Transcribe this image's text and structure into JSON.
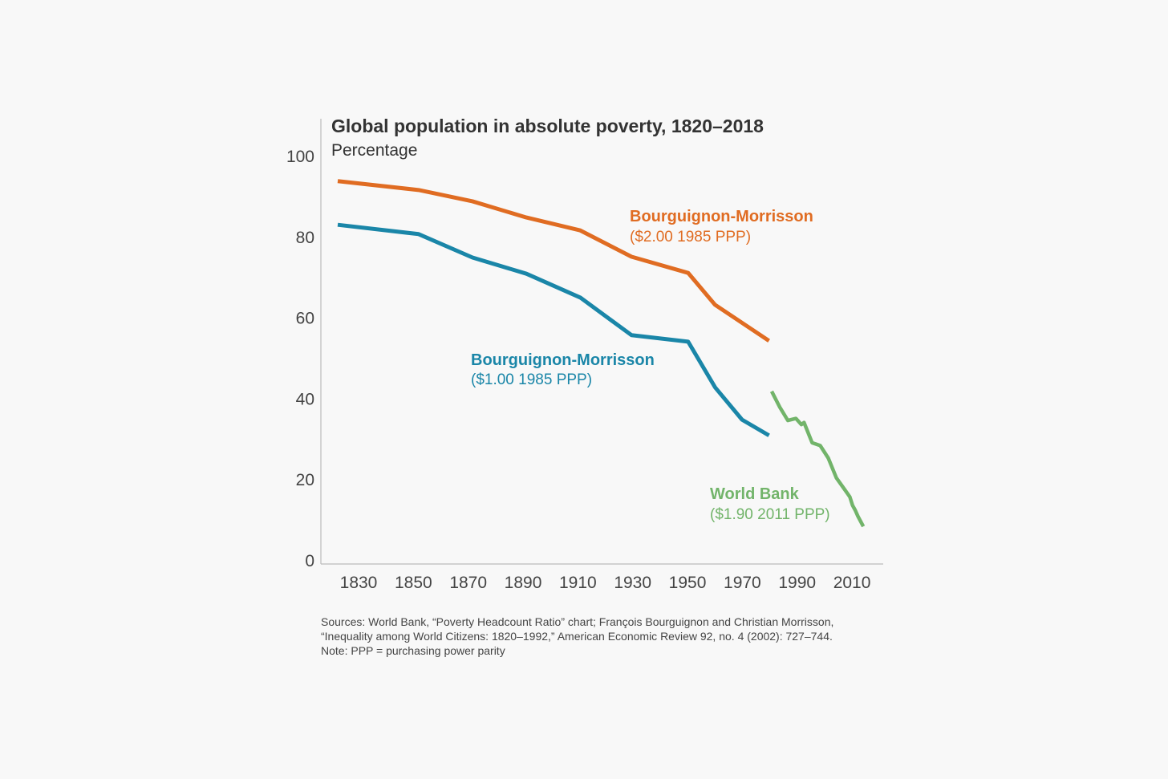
{
  "chart_data": {
    "type": "line",
    "title": "Global population in absolute poverty, 1820–2018",
    "subtitle": "Percentage",
    "xlabel": "",
    "ylabel": "Percentage",
    "xlim": [
      1814,
      2023
    ],
    "ylim": [
      0,
      100
    ],
    "grid": false,
    "x_ticks": [
      "1830",
      "1850",
      "1870",
      "1890",
      "1910",
      "1930",
      "1950",
      "1970",
      "1990",
      "2010"
    ],
    "y_ticks": [
      "0",
      "20",
      "40",
      "60",
      "80",
      "100"
    ],
    "series": [
      {
        "name": "Bourguignon-Morrisson",
        "sublabel": "($2.00 1985 PPP)",
        "color": "#e06c22",
        "x": [
          1820,
          1850,
          1870,
          1890,
          1910,
          1929,
          1950,
          1960,
          1980
        ],
        "y": [
          93.7,
          91.5,
          88.7,
          84.7,
          81.5,
          75.0,
          71.0,
          63.1,
          54.2
        ]
      },
      {
        "name": "Bourguignon-Morrisson",
        "sublabel": "($1.00 1985 PPP)",
        "color": "#1a86a8",
        "x": [
          1820,
          1850,
          1870,
          1890,
          1910,
          1929,
          1950,
          1960,
          1970,
          1980
        ],
        "y": [
          82.9,
          80.6,
          74.8,
          70.8,
          64.9,
          55.6,
          54.0,
          42.7,
          34.7,
          30.8
        ]
      },
      {
        "name": "World Bank",
        "sublabel": "($1.90 2011 PPP)",
        "color": "#72b46a",
        "x": [
          1981,
          1984,
          1987,
          1990,
          1992,
          1993,
          1996,
          1999,
          2002,
          2005,
          2008,
          2010,
          2011,
          2012,
          2013,
          2015
        ],
        "y": [
          41.7,
          37.8,
          34.5,
          35.0,
          33.5,
          34.0,
          29.0,
          28.3,
          25.2,
          20.3,
          17.5,
          15.6,
          13.5,
          12.3,
          10.8,
          8.3
        ]
      }
    ]
  },
  "notes": {
    "sources": "Sources: World Bank, “Poverty Headcount Ratio” chart; François Bourguignon and Christian Morrisson, “Inequality among World Citizens: 1820–1992,” American Economic Review 92, no. 4 (2002): 727–744.",
    "note": "Note: PPP = purchasing power parity"
  }
}
